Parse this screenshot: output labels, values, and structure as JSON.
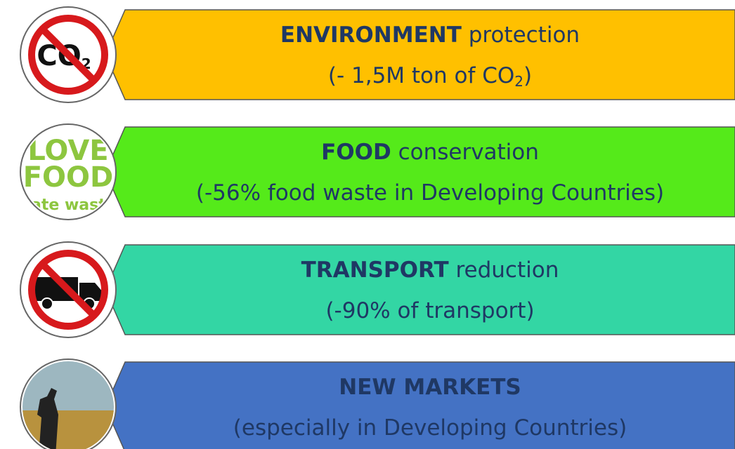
{
  "items": [
    {
      "bold": "ENVIRONMENT",
      "rest": "protection",
      "line2": "(- 1,5M ton of CO",
      "line2_sub": "2",
      "line2_end": ")",
      "color": "#FFC000",
      "icon": "co2",
      "icon_text": "CO",
      "icon_sub": "2"
    },
    {
      "bold": "FOOD",
      "rest": "conservation",
      "line2": "(-56% food waste in Developing Countries)",
      "color": "#55EA1A",
      "icon": "food",
      "icon_lines": [
        "LOVE",
        "FOOD",
        "hate waste"
      ]
    },
    {
      "bold": "TRANSPORT",
      "rest": "reduction",
      "line2": "(-90% of transport)",
      "color": "#33D6A4",
      "icon": "truck"
    },
    {
      "bold": "NEW MARKETS",
      "line2": "(especially in Developing Countries)",
      "color": "#4472C4",
      "icon": "person"
    }
  ]
}
